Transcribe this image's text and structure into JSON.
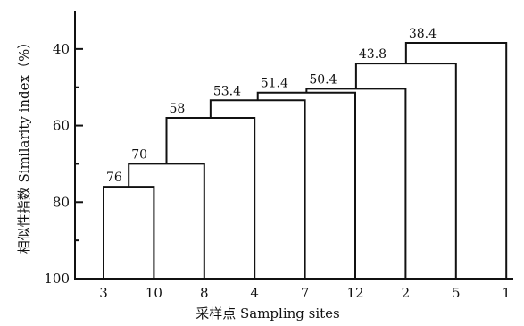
{
  "chart_data": {
    "type": "dendrogram",
    "title": "",
    "xlabel": "采样点 Sampling sites",
    "ylabel": "相似性指数 Similarity index（%）",
    "y_axis": {
      "inverted": true,
      "ylim": [
        30,
        100
      ],
      "ticks": [
        {
          "value": 40,
          "label": "40"
        },
        {
          "value": 60,
          "label": "60"
        },
        {
          "value": 80,
          "label": "80"
        },
        {
          "value": 100,
          "label": "100"
        }
      ],
      "minor_ticks": [
        50,
        70,
        90
      ]
    },
    "leaves": [
      {
        "id": "s3",
        "label": "3"
      },
      {
        "id": "s10",
        "label": "10"
      },
      {
        "id": "s8",
        "label": "8"
      },
      {
        "id": "s4",
        "label": "4"
      },
      {
        "id": "s7",
        "label": "7"
      },
      {
        "id": "s12",
        "label": "12"
      },
      {
        "id": "s2",
        "label": "2"
      },
      {
        "id": "s5",
        "label": "5"
      },
      {
        "id": "s1",
        "label": "1"
      }
    ],
    "merges": [
      {
        "id": "m1",
        "left": "s3",
        "right": "s10",
        "similarity": 76,
        "label": "76"
      },
      {
        "id": "m2",
        "left": "m1",
        "right": "s8",
        "similarity": 70,
        "label": "70"
      },
      {
        "id": "m3",
        "left": "m2",
        "right": "s4",
        "similarity": 58,
        "label": "58"
      },
      {
        "id": "m4",
        "left": "m3",
        "right": "s7",
        "similarity": 53.4,
        "label": "53.4"
      },
      {
        "id": "m5",
        "left": "m4",
        "right": "s12",
        "similarity": 51.4,
        "label": "51.4"
      },
      {
        "id": "m6",
        "left": "m5",
        "right": "s2",
        "similarity": 50.4,
        "label": "50.4"
      },
      {
        "id": "m7",
        "left": "m6",
        "right": "s5",
        "similarity": 43.8,
        "label": "43.8"
      },
      {
        "id": "m8",
        "left": "m7",
        "right": "s1",
        "similarity": 38.4,
        "label": "38.4"
      }
    ]
  }
}
